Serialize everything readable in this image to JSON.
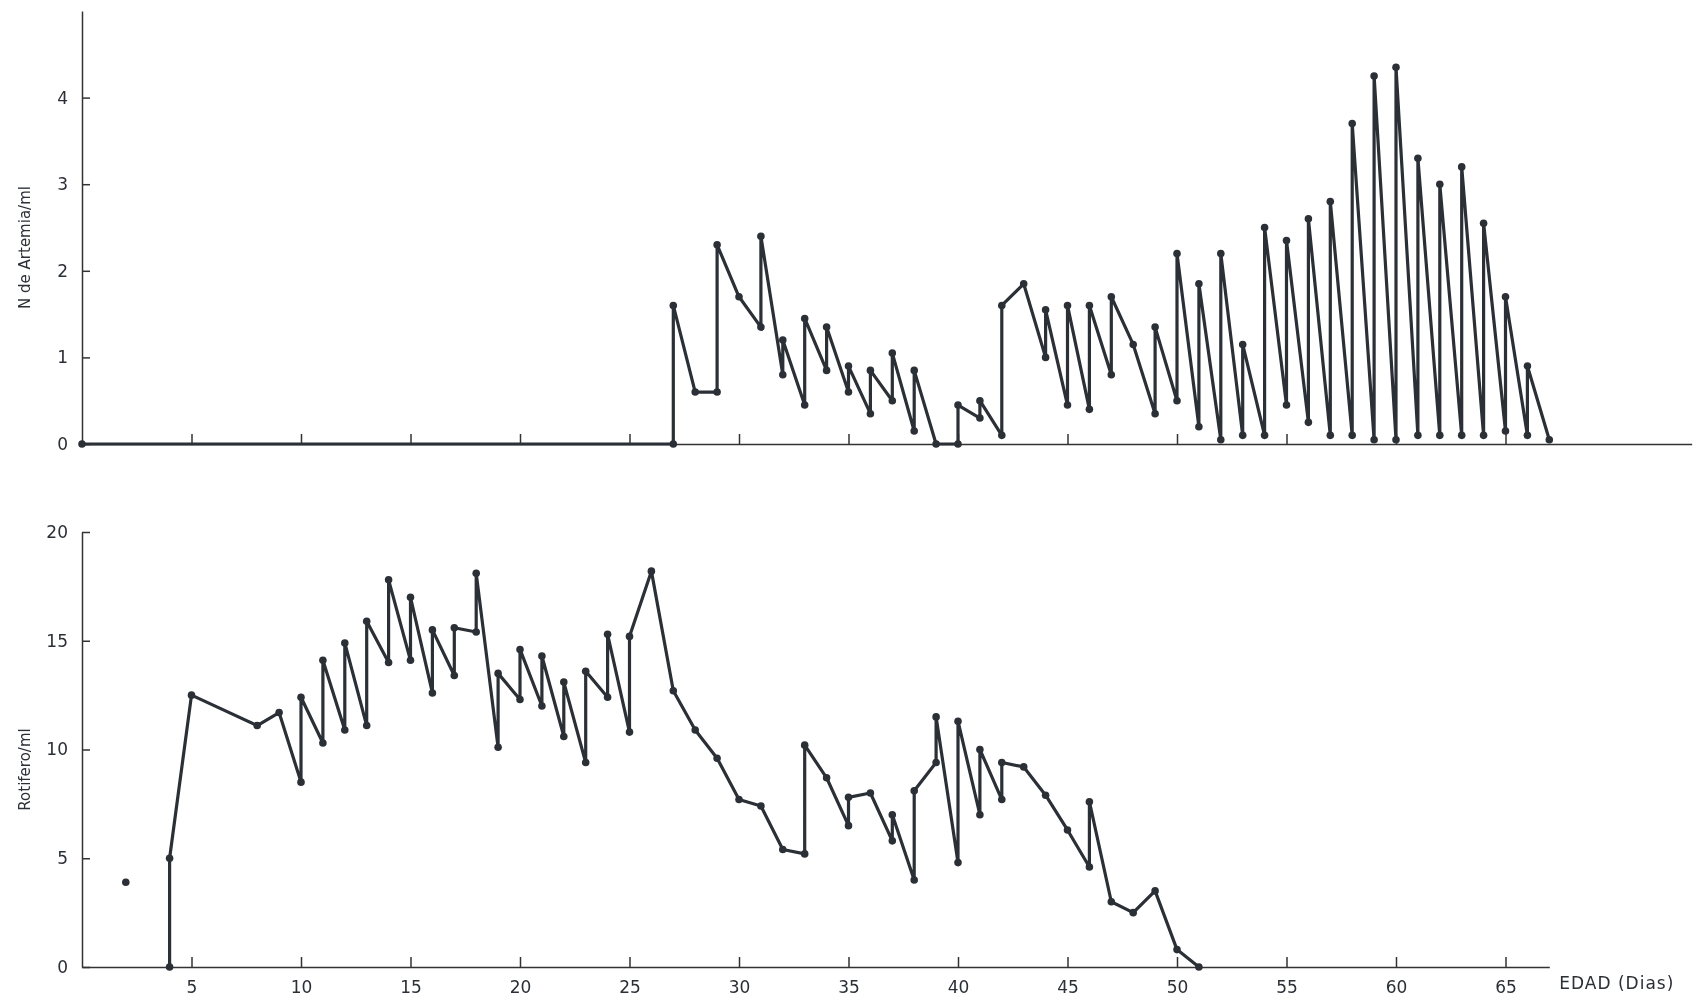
{
  "chart_data": [
    {
      "type": "line",
      "ylabel": "N de Artemia/ml",
      "color": "#2b2f36",
      "marker": "circle",
      "tick_labels": "y",
      "xlim": [
        0,
        73.5
      ],
      "ylim": [
        0,
        5
      ],
      "yticks": [
        0,
        1,
        2,
        3,
        4
      ],
      "xticks": [
        5,
        10,
        15,
        20,
        25,
        30,
        35,
        40,
        45,
        50,
        55,
        60,
        65
      ],
      "x": [
        0,
        27,
        27,
        28,
        29,
        29,
        30,
        31,
        31,
        32,
        32,
        33,
        33,
        34,
        34,
        35,
        35,
        36,
        36,
        37,
        37,
        38,
        38,
        39,
        40,
        40,
        41,
        41,
        42,
        42,
        43,
        44,
        44,
        45,
        45,
        46,
        46,
        47,
        47,
        48,
        49,
        49,
        50,
        50,
        51,
        51,
        52,
        52,
        53,
        53,
        54,
        54,
        55,
        55,
        56,
        56,
        57,
        57,
        58,
        58,
        59,
        59,
        60,
        60,
        61,
        61,
        62,
        62,
        63,
        63,
        64,
        64,
        65,
        65,
        66,
        66,
        67
      ],
      "values": [
        0,
        0,
        1.6,
        0.6,
        0.6,
        2.3,
        1.7,
        1.35,
        2.4,
        0.8,
        1.2,
        0.45,
        1.45,
        0.85,
        1.35,
        0.6,
        0.9,
        0.35,
        0.85,
        0.5,
        1.05,
        0.15,
        0.85,
        0,
        0,
        0.45,
        0.3,
        0.5,
        0.1,
        1.6,
        1.85,
        1.0,
        1.55,
        0.45,
        1.6,
        0.4,
        1.6,
        0.8,
        1.7,
        1.15,
        0.35,
        1.35,
        0.5,
        2.2,
        0.2,
        1.85,
        0.05,
        2.2,
        0.1,
        1.15,
        0.1,
        2.5,
        0.45,
        2.35,
        0.25,
        2.6,
        0.1,
        2.8,
        0.1,
        3.7,
        0.05,
        4.25,
        0.05,
        4.35,
        0.1,
        3.3,
        0.1,
        3.0,
        0.1,
        3.2,
        0.1,
        2.55,
        0.15,
        1.7,
        0.1,
        0.9,
        0.05
      ]
    },
    {
      "type": "line",
      "ylabel": "Rotifero/ml",
      "xlabel": "EDAD (Dias)",
      "color": "#2b2f36",
      "marker": "circle",
      "xlim": [
        0,
        67
      ],
      "ylim": [
        0,
        20
      ],
      "yticks": [
        0,
        5,
        10,
        15,
        20
      ],
      "xticks": [
        5,
        10,
        15,
        20,
        25,
        30,
        35,
        40,
        45,
        50,
        55,
        60,
        65
      ],
      "x": [
        2,
        3,
        4,
        4,
        5,
        8,
        9,
        10,
        10,
        11,
        11,
        12,
        12,
        13,
        13,
        14,
        14,
        15,
        15,
        16,
        16,
        17,
        17,
        18,
        18,
        19,
        19,
        20,
        20,
        21,
        21,
        22,
        22,
        23,
        23,
        24,
        24,
        25,
        25,
        26,
        27,
        28,
        29,
        30,
        31,
        32,
        33,
        33,
        34,
        35,
        35,
        36,
        37,
        37,
        38,
        38,
        39,
        39,
        40,
        40,
        41,
        41,
        42,
        42,
        43,
        44,
        45,
        46,
        46,
        47,
        48,
        49,
        50,
        51
      ],
      "values": [
        3.9,
        null,
        0,
        5.0,
        12.5,
        11.1,
        11.7,
        8.5,
        12.4,
        10.3,
        14.1,
        10.9,
        14.9,
        11.1,
        15.9,
        14.0,
        17.8,
        14.1,
        17.0,
        12.6,
        15.5,
        13.4,
        15.6,
        15.4,
        18.1,
        10.1,
        13.5,
        12.3,
        14.6,
        12.0,
        14.3,
        10.6,
        13.1,
        9.4,
        13.6,
        12.4,
        15.3,
        10.8,
        15.2,
        18.2,
        12.7,
        10.9,
        9.6,
        7.7,
        7.4,
        5.4,
        5.2,
        10.2,
        8.7,
        6.5,
        7.8,
        8.0,
        5.8,
        7.0,
        4.0,
        8.1,
        9.4,
        11.5,
        4.8,
        11.3,
        7.0,
        10.0,
        7.7,
        9.4,
        9.2,
        7.9,
        6.3,
        4.6,
        7.6,
        3.0,
        2.5,
        3.5,
        0.8,
        0
      ]
    }
  ]
}
